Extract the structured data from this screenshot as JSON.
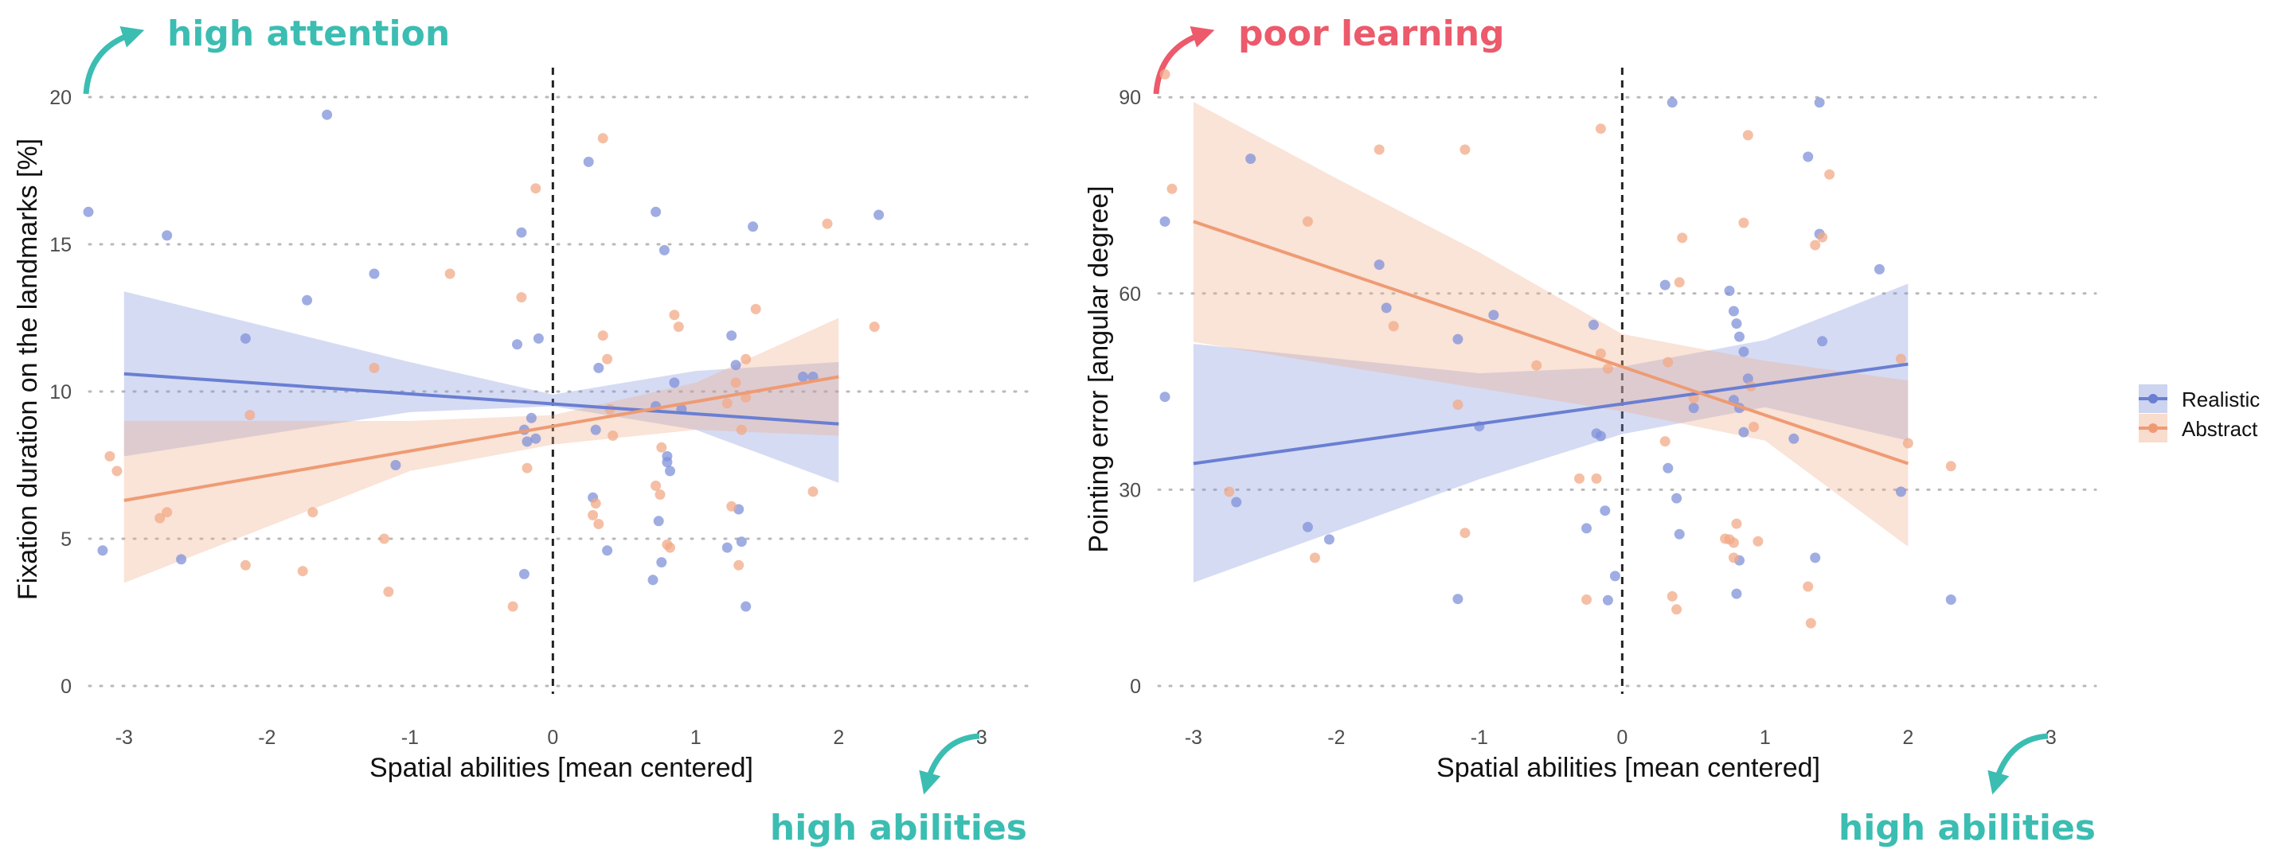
{
  "colors": {
    "realistic": "#6a7fd2",
    "abstract": "#ee9b74",
    "teal": "#3bbdb2",
    "red": "#ec5a6b"
  },
  "legend": {
    "items": [
      "Realistic",
      "Abstract"
    ]
  },
  "chart_data": [
    {
      "type": "scatter",
      "xlabel": "Spatial abilities [mean centered]",
      "ylabel": "Fixation duration on the landmarks [%]",
      "xlim": [
        -3.3,
        3.3
      ],
      "ylim": [
        0,
        20
      ],
      "xticks": [
        "-3",
        "-2",
        "-1",
        "0",
        "1",
        "2",
        "3"
      ],
      "yticks": [
        "0",
        "5",
        "10",
        "15",
        "20"
      ],
      "annotations": {
        "top": "high attention",
        "bottom": "high abilities"
      },
      "series": [
        {
          "name": "Realistic",
          "points": [
            [
              -3.25,
              16.1
            ],
            [
              -3.15,
              4.6
            ],
            [
              -2.7,
              15.3
            ],
            [
              -2.6,
              4.3
            ],
            [
              -2.15,
              11.8
            ],
            [
              -1.72,
              13.1
            ],
            [
              -1.58,
              19.4
            ],
            [
              -1.25,
              14.0
            ],
            [
              -1.1,
              7.5
            ],
            [
              -0.25,
              11.6
            ],
            [
              -0.22,
              15.4
            ],
            [
              -0.2,
              8.7
            ],
            [
              -0.18,
              8.3
            ],
            [
              -0.15,
              9.1
            ],
            [
              -0.12,
              8.4
            ],
            [
              -0.1,
              11.8
            ],
            [
              -0.2,
              3.8
            ],
            [
              0.25,
              17.8
            ],
            [
              0.28,
              6.4
            ],
            [
              0.3,
              8.7
            ],
            [
              0.32,
              10.8
            ],
            [
              0.38,
              4.6
            ],
            [
              0.7,
              3.6
            ],
            [
              0.72,
              16.1
            ],
            [
              0.74,
              5.6
            ],
            [
              0.76,
              4.2
            ],
            [
              0.78,
              14.8
            ],
            [
              0.8,
              7.8
            ],
            [
              0.8,
              7.6
            ],
            [
              0.82,
              7.3
            ],
            [
              0.85,
              10.3
            ],
            [
              0.9,
              9.4
            ],
            [
              1.25,
              11.9
            ],
            [
              1.28,
              10.9
            ],
            [
              1.22,
              4.7
            ],
            [
              1.3,
              6.0
            ],
            [
              1.32,
              4.9
            ],
            [
              1.35,
              2.7
            ],
            [
              1.4,
              15.6
            ],
            [
              1.75,
              10.5
            ],
            [
              1.82,
              10.5
            ],
            [
              2.28,
              16.0
            ],
            [
              0.72,
              9.5
            ]
          ],
          "fit_line": [
            [
              -3.0,
              10.6
            ],
            [
              2.0,
              8.9
            ]
          ],
          "band": {
            "x": [
              -3.0,
              -1.0,
              0.0,
              1.0,
              2.0
            ],
            "lower": [
              7.8,
              9.3,
              9.5,
              8.7,
              6.9
            ],
            "upper": [
              13.4,
              11.0,
              9.9,
              10.7,
              11.0
            ]
          }
        },
        {
          "name": "Abstract",
          "points": [
            [
              -3.1,
              7.8
            ],
            [
              -3.05,
              7.3
            ],
            [
              -2.75,
              5.7
            ],
            [
              -2.7,
              5.9
            ],
            [
              -2.15,
              4.1
            ],
            [
              -2.12,
              9.2
            ],
            [
              -1.75,
              3.9
            ],
            [
              -1.68,
              5.9
            ],
            [
              -1.25,
              10.8
            ],
            [
              -1.18,
              5.0
            ],
            [
              -1.15,
              3.2
            ],
            [
              -0.72,
              14.0
            ],
            [
              -0.28,
              2.7
            ],
            [
              -0.22,
              13.2
            ],
            [
              -0.18,
              7.4
            ],
            [
              -0.12,
              16.9
            ],
            [
              0.28,
              5.8
            ],
            [
              0.3,
              6.2
            ],
            [
              0.32,
              5.5
            ],
            [
              0.35,
              11.9
            ],
            [
              0.35,
              18.6
            ],
            [
              0.38,
              11.1
            ],
            [
              0.4,
              9.4
            ],
            [
              0.42,
              8.5
            ],
            [
              0.72,
              6.8
            ],
            [
              0.75,
              6.5
            ],
            [
              0.76,
              8.1
            ],
            [
              0.8,
              4.8
            ],
            [
              0.82,
              4.7
            ],
            [
              0.85,
              12.6
            ],
            [
              0.88,
              12.2
            ],
            [
              1.22,
              9.6
            ],
            [
              1.25,
              6.1
            ],
            [
              1.28,
              10.3
            ],
            [
              1.3,
              4.1
            ],
            [
              1.32,
              8.7
            ],
            [
              1.35,
              11.1
            ],
            [
              1.35,
              9.8
            ],
            [
              1.42,
              12.8
            ],
            [
              1.82,
              6.6
            ],
            [
              1.92,
              15.7
            ],
            [
              2.25,
              12.2
            ]
          ],
          "fit_line": [
            [
              -3.0,
              6.3
            ],
            [
              2.0,
              10.5
            ]
          ],
          "band": {
            "x": [
              -3.0,
              -1.0,
              0.0,
              1.0,
              2.0
            ],
            "lower": [
              3.5,
              7.3,
              8.2,
              8.7,
              8.5
            ],
            "upper": [
              9.0,
              9.0,
              9.2,
              10.3,
              12.5
            ]
          }
        }
      ]
    },
    {
      "type": "scatter",
      "xlabel": "Spatial abilities [mean centered]",
      "ylabel": "Pointing error [angular degree]",
      "xlim": [
        -3.3,
        3.3
      ],
      "ylim": [
        0,
        90
      ],
      "xticks": [
        "-3",
        "-2",
        "-1",
        "0",
        "1",
        "2",
        "3"
      ],
      "yticks": [
        "0",
        "30",
        "60",
        "90"
      ],
      "annotations": {
        "top": "poor learning",
        "bottom": "high abilities"
      },
      "series": [
        {
          "name": "Realistic",
          "points": [
            [
              -3.2,
              71.0
            ],
            [
              -3.2,
              44.2
            ],
            [
              -2.7,
              28.1
            ],
            [
              -2.6,
              80.6
            ],
            [
              -2.2,
              24.3
            ],
            [
              -2.05,
              22.4
            ],
            [
              -1.7,
              64.4
            ],
            [
              -1.65,
              57.8
            ],
            [
              -1.15,
              53.0
            ],
            [
              -1.15,
              13.3
            ],
            [
              -1.0,
              39.7
            ],
            [
              -0.9,
              56.7
            ],
            [
              -0.2,
              55.2
            ],
            [
              -0.18,
              38.6
            ],
            [
              -0.15,
              38.2
            ],
            [
              -0.12,
              26.8
            ],
            [
              -0.25,
              24.1
            ],
            [
              -0.05,
              16.8
            ],
            [
              -0.1,
              13.1
            ],
            [
              0.3,
              61.3
            ],
            [
              0.32,
              33.3
            ],
            [
              0.35,
              89.2
            ],
            [
              0.38,
              28.7
            ],
            [
              0.4,
              23.2
            ],
            [
              0.75,
              60.4
            ],
            [
              0.78,
              57.3
            ],
            [
              0.8,
              55.4
            ],
            [
              0.82,
              53.4
            ],
            [
              0.85,
              51.1
            ],
            [
              0.88,
              47.0
            ],
            [
              0.78,
              43.7
            ],
            [
              0.82,
              42.5
            ],
            [
              0.82,
              19.2
            ],
            [
              0.8,
              14.1
            ],
            [
              1.3,
              80.9
            ],
            [
              1.38,
              89.2
            ],
            [
              1.38,
              69.1
            ],
            [
              1.4,
              52.7
            ],
            [
              1.35,
              19.6
            ],
            [
              1.2,
              37.8
            ],
            [
              1.8,
              63.7
            ],
            [
              1.95,
              29.7
            ],
            [
              2.3,
              13.2
            ],
            [
              0.85,
              38.8
            ],
            [
              0.5,
              42.5
            ]
          ],
          "fit_line": [
            [
              -3.0,
              34.0
            ],
            [
              2.0,
              49.2
            ]
          ],
          "band": {
            "x": [
              -3.0,
              -1.0,
              0.0,
              1.0,
              2.0
            ],
            "lower": [
              15.8,
              31.6,
              38.5,
              42.6,
              37.5
            ],
            "upper": [
              52.3,
              47.8,
              48.8,
              52.9,
              61.5
            ]
          }
        },
        {
          "name": "Abstract",
          "points": [
            [
              -3.2,
              93.5
            ],
            [
              -3.15,
              76.0
            ],
            [
              -2.75,
              29.7
            ],
            [
              -2.2,
              71.0
            ],
            [
              -2.15,
              19.6
            ],
            [
              -1.7,
              82.0
            ],
            [
              -1.6,
              55.0
            ],
            [
              -1.15,
              43.0
            ],
            [
              -1.1,
              82.0
            ],
            [
              -1.1,
              23.4
            ],
            [
              -0.6,
              49.0
            ],
            [
              -0.3,
              31.7
            ],
            [
              -0.25,
              13.2
            ],
            [
              -0.18,
              31.7
            ],
            [
              -0.15,
              85.2
            ],
            [
              -0.15,
              50.8
            ],
            [
              -0.1,
              48.5
            ],
            [
              0.3,
              37.4
            ],
            [
              0.32,
              49.5
            ],
            [
              0.35,
              13.7
            ],
            [
              0.38,
              11.7
            ],
            [
              0.4,
              61.7
            ],
            [
              0.42,
              68.5
            ],
            [
              0.72,
              22.5
            ],
            [
              0.75,
              22.4
            ],
            [
              0.78,
              21.9
            ],
            [
              0.78,
              19.6
            ],
            [
              0.8,
              24.8
            ],
            [
              0.85,
              70.8
            ],
            [
              0.88,
              84.2
            ],
            [
              0.9,
              45.8
            ],
            [
              0.92,
              39.6
            ],
            [
              0.95,
              22.1
            ],
            [
              1.3,
              15.2
            ],
            [
              1.32,
              9.6
            ],
            [
              1.35,
              67.4
            ],
            [
              1.4,
              68.6
            ],
            [
              1.45,
              78.2
            ],
            [
              1.95,
              50.0
            ],
            [
              2.0,
              37.1
            ],
            [
              2.3,
              33.6
            ],
            [
              0.5,
              44.0
            ]
          ],
          "fit_line": [
            [
              -3.0,
              71.0
            ],
            [
              2.0,
              34.0
            ]
          ],
          "band": {
            "x": [
              -3.0,
              -2.0,
              -1.0,
              0.0,
              1.0,
              2.0
            ],
            "lower": [
              52.6,
              49.0,
              45.5,
              42.0,
              37.5,
              21.3
            ],
            "upper": [
              89.3,
              77.6,
              66.3,
              53.8,
              49.7,
              46.7
            ]
          }
        }
      ]
    }
  ]
}
